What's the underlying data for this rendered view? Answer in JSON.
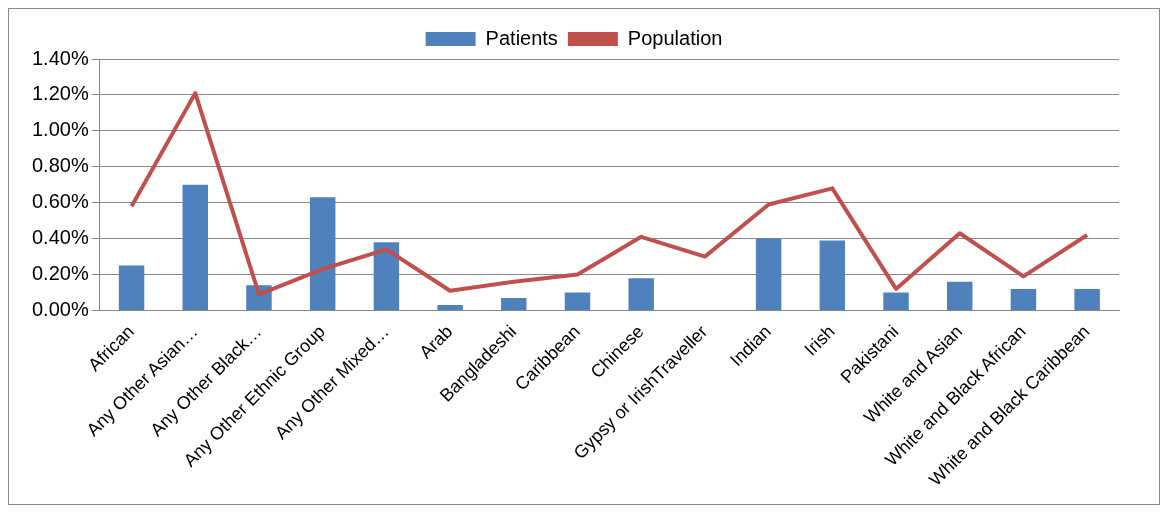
{
  "chart_data": {
    "type": "bar",
    "categories": [
      "African",
      "Any Other Asian…",
      "Any Other Black…",
      "Any Other Ethnic Group",
      "Any Other Mixed…",
      "Arab",
      "Bangladeshi",
      "Caribbean",
      "Chinese",
      "Gypsy or IrishTraveller",
      "Indian",
      "Irish",
      "Pakistani",
      "White and Asian",
      "White and Black African",
      "White and Black Caribbean"
    ],
    "series": [
      {
        "name": "Patients",
        "color": "#4f81bd",
        "values": [
          0.25,
          0.7,
          0.14,
          0.63,
          0.38,
          0.03,
          0.07,
          0.1,
          0.18,
          0,
          0.4,
          0.39,
          0.1,
          0.16,
          0.12,
          0.12
        ]
      },
      {
        "name": "Population",
        "type": "line",
        "color": "#c0504d",
        "values": [
          0.58,
          1.21,
          0.09,
          0.23,
          0.34,
          0.11,
          0.16,
          0.2,
          0.41,
          0.3,
          0.59,
          0.68,
          0.12,
          0.43,
          0.19,
          0.42
        ]
      }
    ],
    "ylim": [
      0,
      1.4
    ],
    "yticks": [
      {
        "value": 0,
        "label": "0.00%"
      },
      {
        "value": 0.2,
        "label": "0.20%"
      },
      {
        "value": 0.4,
        "label": "0.40%"
      },
      {
        "value": 0.6,
        "label": "0.60%"
      },
      {
        "value": 0.8,
        "label": "0.80%"
      },
      {
        "value": 1.0,
        "label": "1.00%"
      },
      {
        "value": 1.2,
        "label": "1.20%"
      },
      {
        "value": 1.4,
        "label": "1.40%"
      }
    ],
    "grid": "y",
    "legend": "top",
    "marker": "none"
  }
}
